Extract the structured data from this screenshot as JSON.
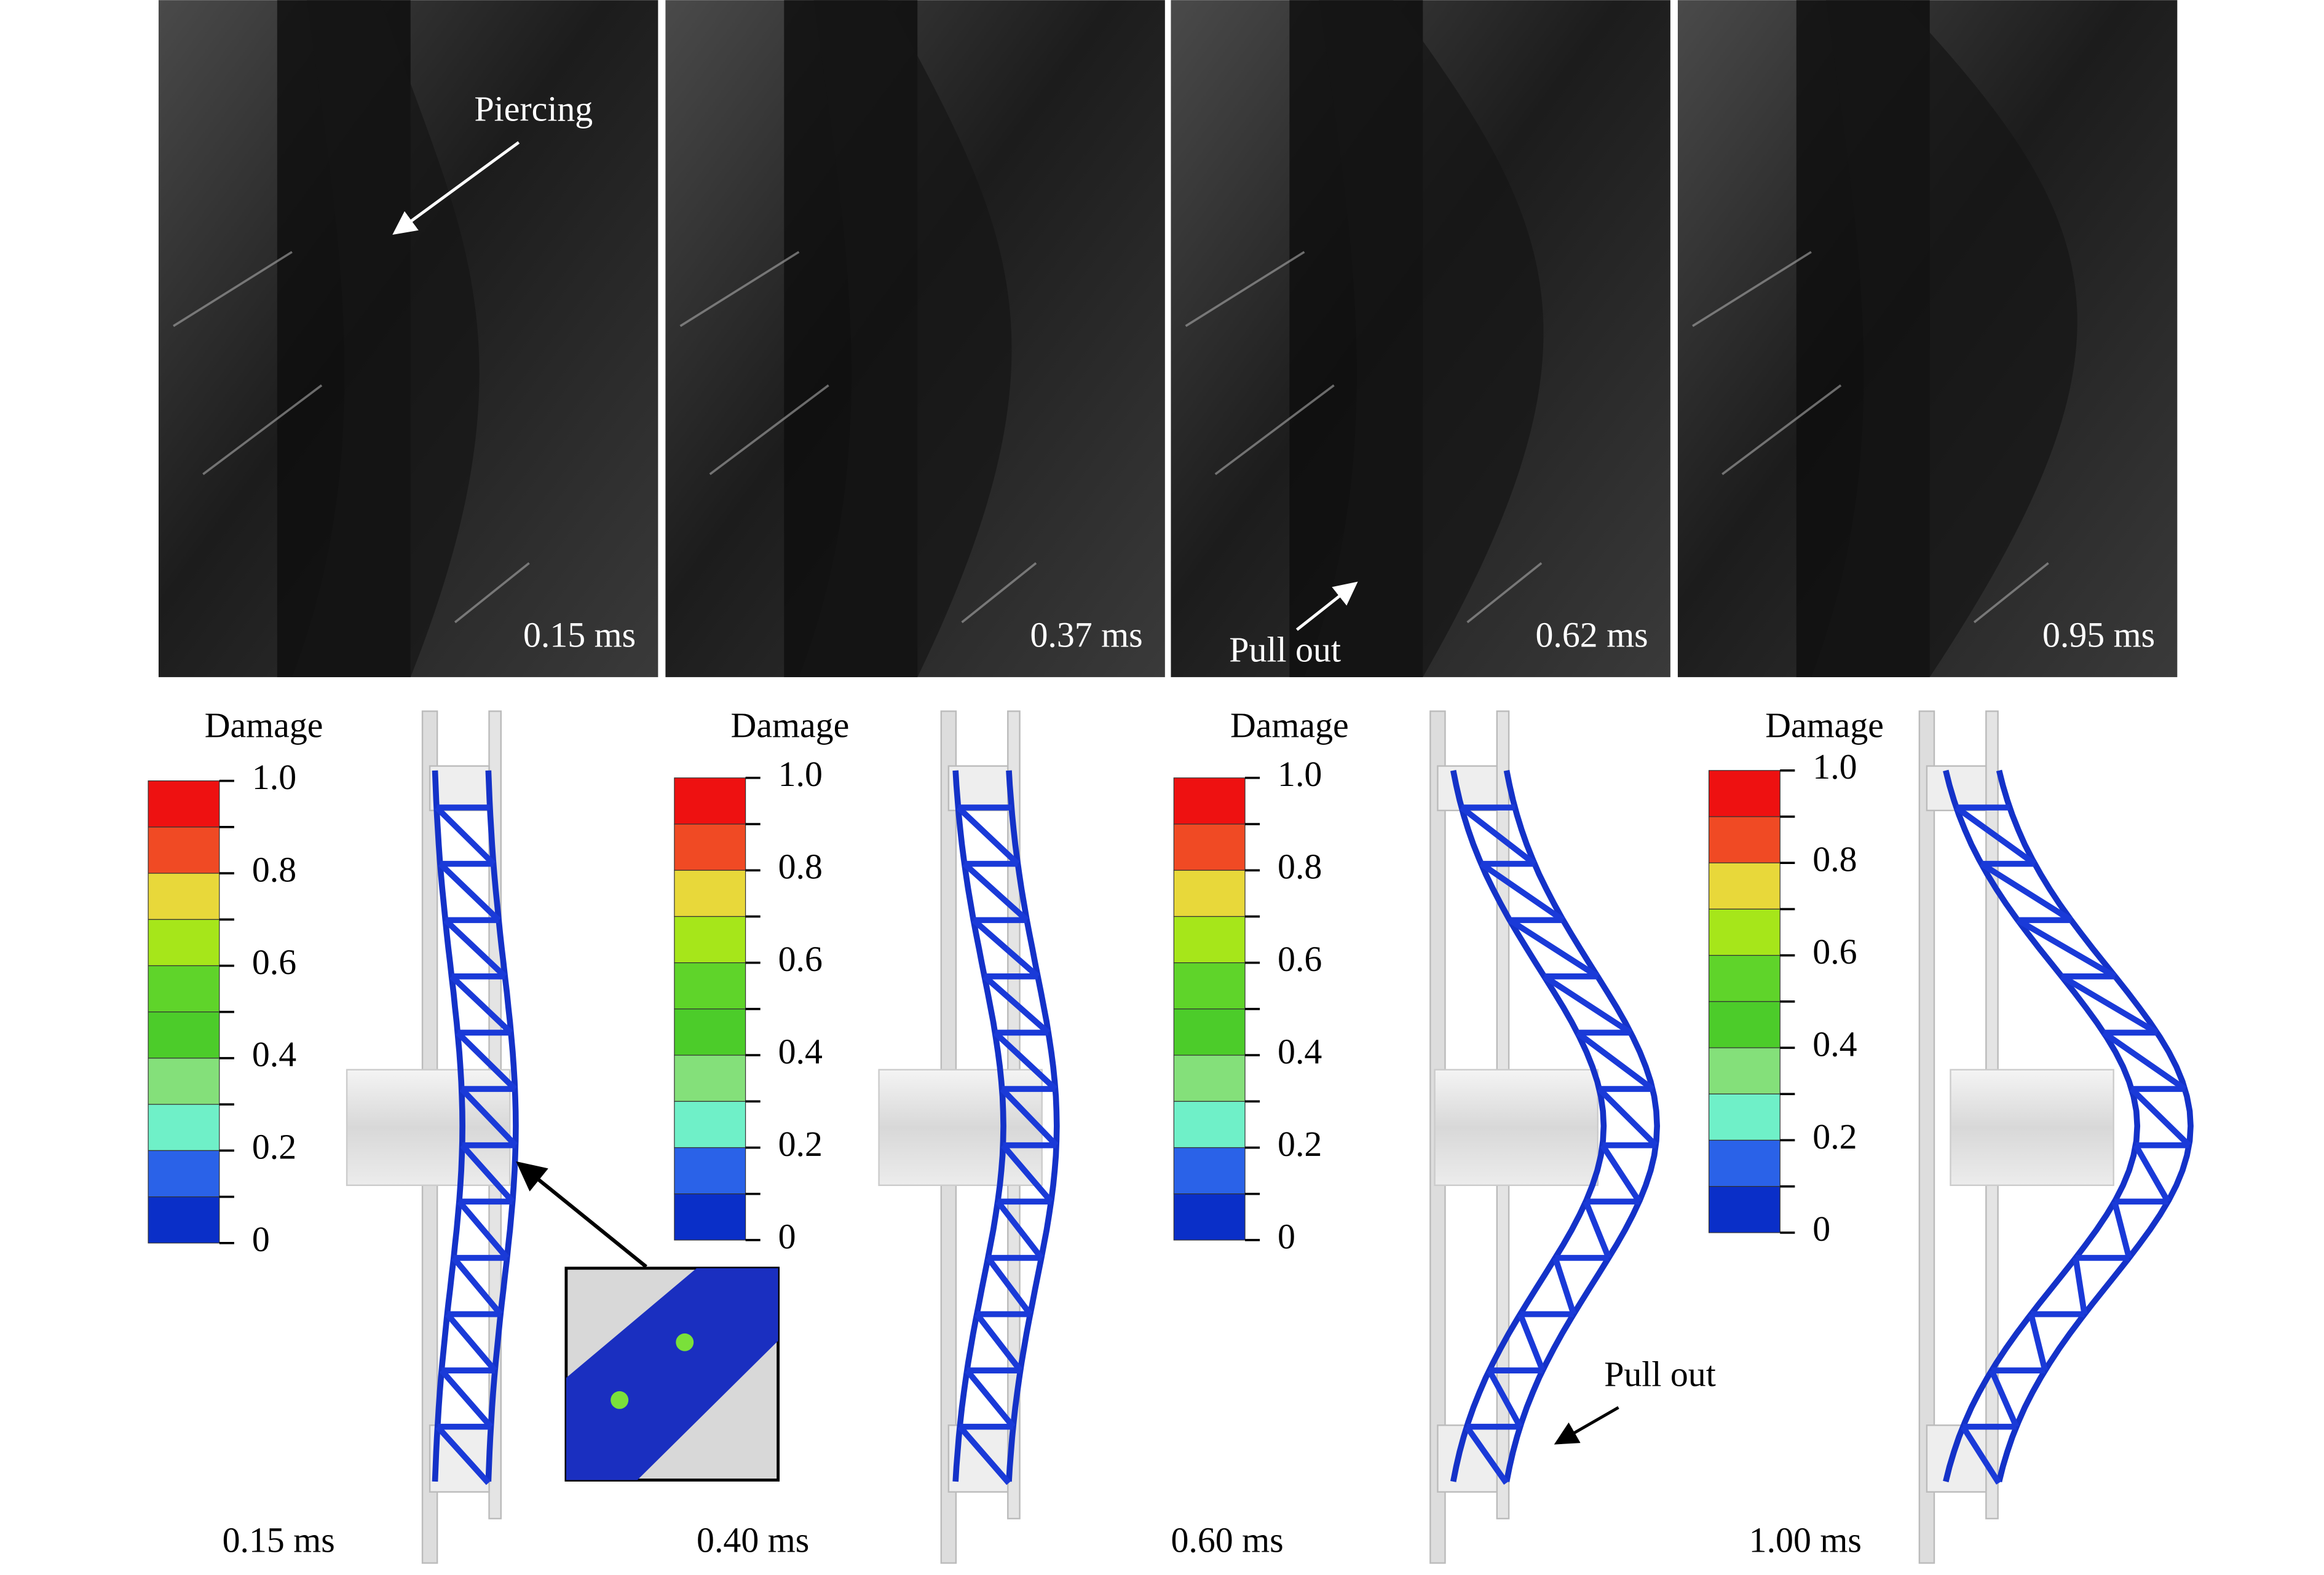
{
  "photos": [
    {
      "time": "0.15 ms",
      "annotation": "Piercing"
    },
    {
      "time": "0.37 ms"
    },
    {
      "time": "0.62 ms",
      "annotation": "Pull out"
    },
    {
      "time": "0.95 ms"
    }
  ],
  "simulations": [
    {
      "time": "0.15 ms",
      "legend_title": "Damage"
    },
    {
      "time": "0.40 ms",
      "legend_title": "Damage"
    },
    {
      "time": "0.60 ms",
      "legend_title": "Damage",
      "annotation": "Pull out"
    },
    {
      "time": "1.00 ms",
      "legend_title": "Damage"
    }
  ],
  "legend_ticks": [
    "1.0",
    "0.8",
    "0.6",
    "0.4",
    "0.2",
    "0"
  ],
  "legend_colors": [
    "#ee1111",
    "#f04a24",
    "#e8d83a",
    "#a6e61a",
    "#5fd42a",
    "#4ccc2a",
    "#84e07a",
    "#6ff0c8",
    "#2a62e8",
    "#0a2fc8"
  ]
}
